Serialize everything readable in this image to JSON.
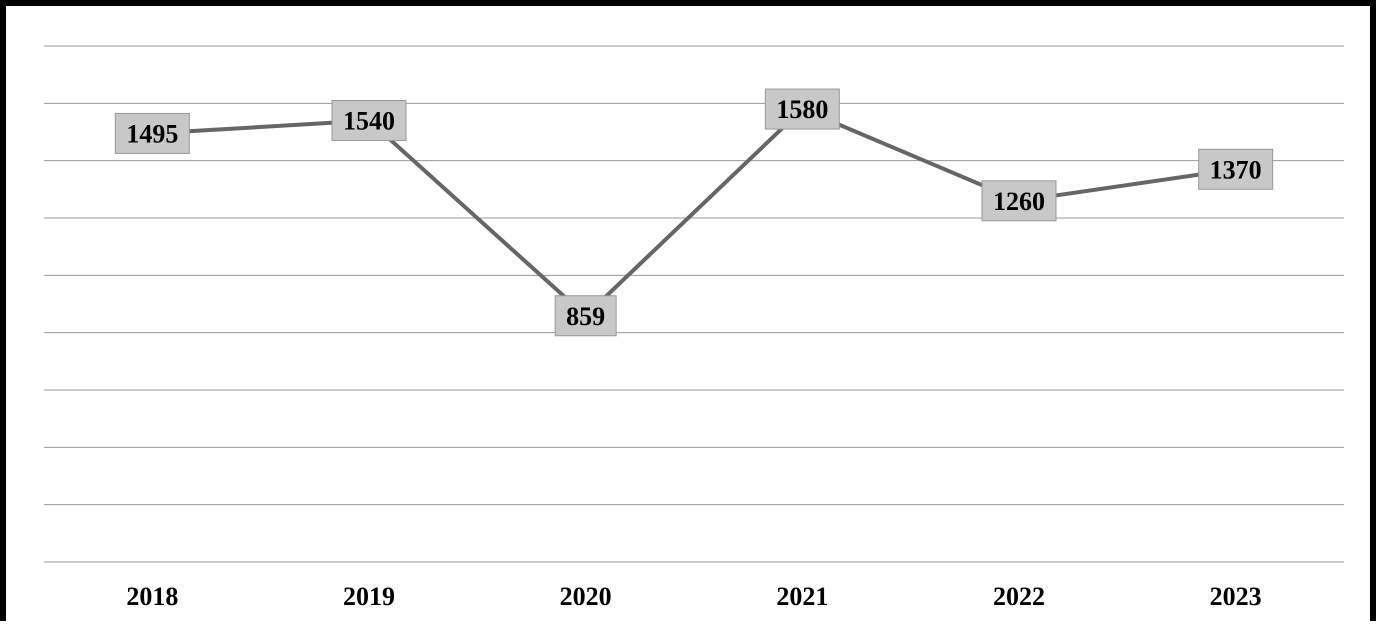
{
  "chart_data": {
    "type": "line",
    "categories": [
      "2018",
      "2019",
      "2020",
      "2021",
      "2022",
      "2023"
    ],
    "series": [
      {
        "values": [
          1495,
          1540,
          859,
          1580,
          1260,
          1370
        ]
      }
    ],
    "ylim": [
      0,
      1800
    ],
    "grid": true,
    "colors": {
      "line": "#666666",
      "label_box": "#c8c8c8",
      "label_border": "#999999",
      "grid": "#999999"
    }
  }
}
